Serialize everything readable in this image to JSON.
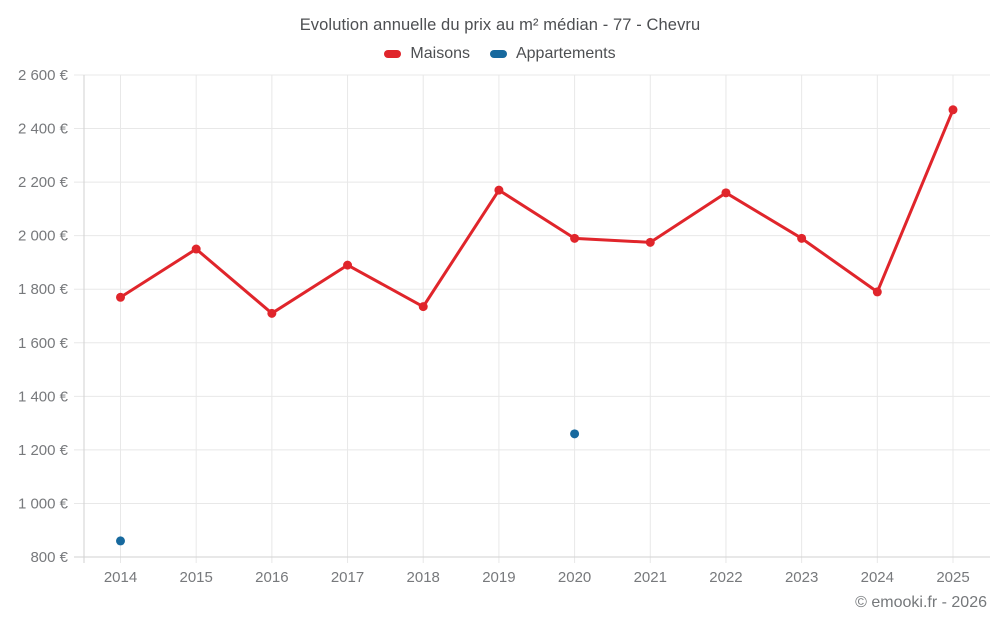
{
  "chart_data": {
    "type": "line",
    "title": "Evolution annuelle du prix au m² médian - 77 - Chevru",
    "categories": [
      "2014",
      "2015",
      "2016",
      "2017",
      "2018",
      "2019",
      "2020",
      "2021",
      "2022",
      "2023",
      "2024",
      "2025"
    ],
    "series": [
      {
        "name": "Maisons",
        "color": "#e0252b",
        "values": [
          1770,
          1950,
          1710,
          1890,
          1735,
          2170,
          1990,
          1975,
          2160,
          1990,
          1790,
          2470
        ]
      },
      {
        "name": "Appartements",
        "color": "#17699e",
        "values": [
          860,
          null,
          null,
          null,
          null,
          null,
          1260,
          null,
          null,
          null,
          null,
          null
        ]
      }
    ],
    "ylabel": "",
    "xlabel": "",
    "ylim": [
      800,
      2600
    ],
    "ytick_step": 200,
    "ytick_labels": [
      "800 €",
      "1 000 €",
      "1 200 €",
      "1 400 €",
      "1 600 €",
      "1 800 €",
      "2 000 €",
      "2 200 €",
      "2 400 €",
      "2 600 €"
    ],
    "grid": true,
    "legend_position": "top"
  },
  "footer": {
    "credit": "© emooki.fr - 2026"
  },
  "colors": {
    "grid_line": "#e8e8e8",
    "axis_line": "#d2d2d2",
    "tick_text": "#77797c",
    "title_text": "#4d4f52"
  }
}
